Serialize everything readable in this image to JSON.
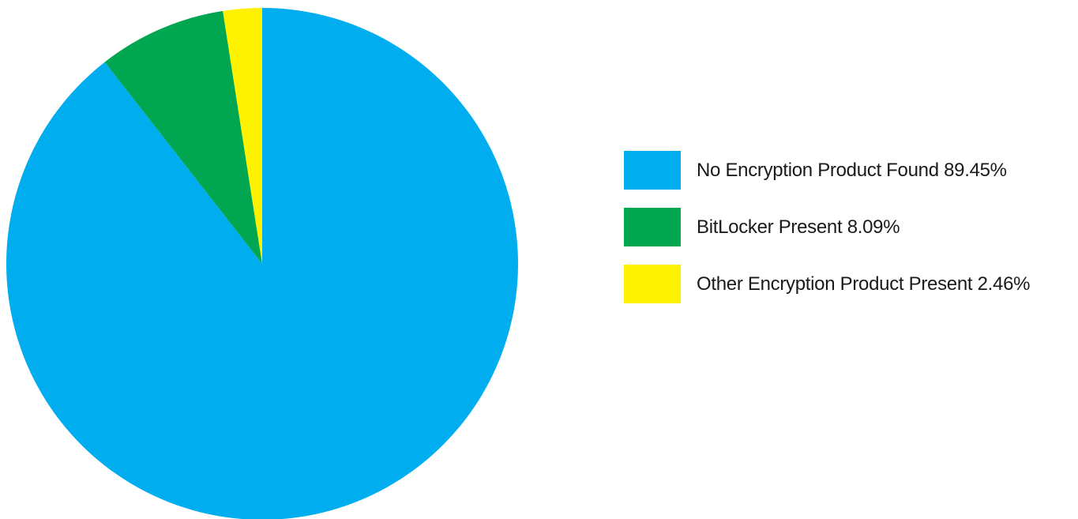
{
  "chart_data": {
    "type": "pie",
    "title": "",
    "legend_position": "right",
    "slices": [
      {
        "label": "No Encryption Product Found 89.45%",
        "value": 89.45,
        "color": "#00AEEF"
      },
      {
        "label": "BitLocker Present 8.09%",
        "value": 8.09,
        "color": "#00A650"
      },
      {
        "label": "Other Encryption Product Present 2.46%",
        "value": 2.46,
        "color": "#FFF200"
      }
    ]
  }
}
